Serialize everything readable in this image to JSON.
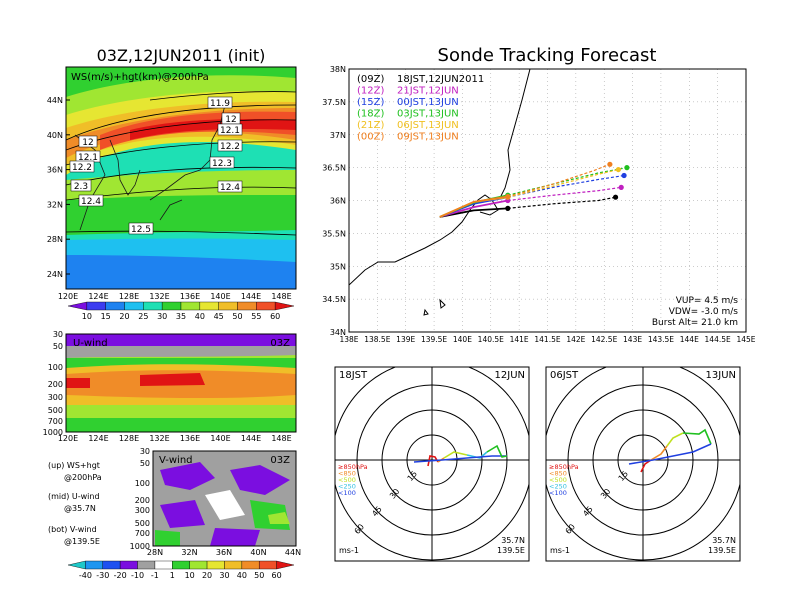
{
  "colors": {
    "map_bands": [
      "#7b0ee0",
      "#3c3cf0",
      "#1e82f0",
      "#1ec0f0",
      "#1ee0b4",
      "#30d030",
      "#a0e632",
      "#e6e632",
      "#f0be28",
      "#f08c28",
      "#f05028",
      "#e01414"
    ],
    "vwind_bands": [
      "#1ec8c8",
      "#1e96f0",
      "#1e50f0",
      "#7b0ee0",
      "#a0a0a0",
      "#ffffff",
      "#30d030",
      "#a0e632",
      "#e6e632",
      "#f0be28",
      "#f08c28",
      "#f05028",
      "#e01414"
    ],
    "tracks": [
      "#000000",
      "#c020c0",
      "#2040e0",
      "#20c020",
      "#f0c020",
      "#f08020"
    ]
  },
  "left_top": {
    "title": "03Z,12JUN2011 (init)",
    "label": "WS(m/s)+hgt(km)@200hPa",
    "lat_ticks": [
      "44N",
      "40N",
      "36N",
      "32N",
      "28N",
      "24N"
    ],
    "lon_ticks": [
      "120E",
      "124E",
      "128E",
      "132E",
      "136E",
      "140E",
      "144E",
      "148E"
    ],
    "contour_labels": [
      "11.9",
      "12",
      "12.1",
      "12.2",
      "12.3",
      "12.4",
      "12.5",
      "12",
      "12.1",
      "12.2",
      "2.3",
      "12.4"
    ],
    "colorbar": [
      "10",
      "15",
      "20",
      "25",
      "30",
      "35",
      "40",
      "45",
      "50",
      "55",
      "60"
    ]
  },
  "u_wind": {
    "label": "U-wind",
    "time": "03Z",
    "y_ticks": [
      "30",
      "50",
      "100",
      "200",
      "300",
      "500",
      "700",
      "1000"
    ],
    "x_ticks": [
      "120E",
      "124E",
      "128E",
      "132E",
      "136E",
      "140E",
      "144E",
      "148E"
    ]
  },
  "v_wind": {
    "label": "V-wind",
    "time": "03Z",
    "y_ticks": [
      "30",
      "50",
      "100",
      "200",
      "300",
      "500",
      "700",
      "1000"
    ],
    "x_ticks": [
      "28N",
      "32N",
      "36N",
      "40N",
      "44N"
    ],
    "colorbar": [
      "-40",
      "-30",
      "-20",
      "-10",
      "-1",
      "1",
      "10",
      "20",
      "30",
      "40",
      "50",
      "60"
    ]
  },
  "legend_notes": [
    {
      "a": "(up) WS+hgt",
      "b": "@200hPa"
    },
    {
      "a": "(mid) U-wind",
      "b": "@35.7N"
    },
    {
      "a": "(bot) V-wind",
      "b": "@139.5E"
    }
  ],
  "right": {
    "title": "Sonde Tracking Forecast",
    "lat_ticks": [
      "38N",
      "37.5N",
      "37N",
      "36.5N",
      "36N",
      "35.5N",
      "35N",
      "34.5N",
      "34N"
    ],
    "lon_ticks": [
      "138E",
      "138.5E",
      "139E",
      "139.5E",
      "140E",
      "140.5E",
      "141E",
      "141.5E",
      "142E",
      "142.5E",
      "143E",
      "143.5E",
      "144E",
      "144.5E",
      "145E"
    ],
    "launches": [
      {
        "code": "(09Z)",
        "time": "18JST,12JUN2011"
      },
      {
        "code": "(12Z)",
        "time": "21JST,12JUN"
      },
      {
        "code": "(15Z)",
        "time": "00JST,13JUN"
      },
      {
        "code": "(18Z)",
        "time": "03JST,13JUN"
      },
      {
        "code": "(21Z)",
        "time": "06JST,13JUN"
      },
      {
        "code": "(00Z)",
        "time": "09JST,13JUN"
      }
    ],
    "params": [
      "VUP=  4.5 m/s",
      "VDW= -3.0 m/s",
      "Burst Alt= 21.0 km"
    ]
  },
  "chart_data": [
    {
      "type": "line",
      "title": "Sonde Tracking Forecast",
      "xlim": [
        138,
        145
      ],
      "ylim": [
        34,
        38
      ],
      "series": [
        {
          "name": "(09Z) 18JST,12JUN2011",
          "x": [
            139.6,
            140.2,
            140.8,
            141.6,
            142.4,
            142.7
          ],
          "y": [
            35.75,
            35.85,
            35.88,
            35.95,
            36.0,
            36.05
          ]
        },
        {
          "name": "(12Z) 21JST,12JUN",
          "x": [
            139.6,
            140.2,
            140.8,
            141.6,
            142.4,
            142.8
          ],
          "y": [
            35.75,
            35.9,
            36.0,
            36.08,
            36.15,
            36.2
          ]
        },
        {
          "name": "(15Z) 00JST,13JUN",
          "x": [
            139.6,
            140.2,
            140.8,
            141.6,
            142.4,
            142.85
          ],
          "y": [
            35.75,
            35.95,
            36.05,
            36.2,
            36.32,
            36.38
          ]
        },
        {
          "name": "(18Z) 03JST,13JUN",
          "x": [
            139.6,
            140.2,
            140.8,
            141.6,
            142.4,
            142.9
          ],
          "y": [
            35.75,
            35.97,
            36.08,
            36.25,
            36.42,
            36.5
          ]
        },
        {
          "name": "(21Z) 06JST,13JUN",
          "x": [
            139.6,
            140.2,
            140.8,
            141.6,
            142.4,
            142.75
          ],
          "y": [
            35.75,
            35.98,
            36.05,
            36.22,
            36.4,
            36.47
          ]
        },
        {
          "name": "(00Z) 09JST,13JUN",
          "x": [
            139.6,
            140.2,
            140.8,
            141.6,
            142.3,
            142.6
          ],
          "y": [
            35.75,
            35.98,
            36.06,
            36.25,
            36.45,
            36.55
          ]
        }
      ]
    },
    {
      "type": "line",
      "title": "18JST",
      "date": "12JUN",
      "ring_labels": [
        "15",
        "30",
        "45",
        "60"
      ],
      "layers": [
        "≥850hPa",
        "<850",
        "<500",
        "<250",
        "<100"
      ],
      "location": [
        "35.7N",
        "139.5E"
      ],
      "unit": "ms-1"
    },
    {
      "type": "line",
      "title": "06JST",
      "date": "13JUN",
      "ring_labels": [
        "15",
        "30",
        "45",
        "60"
      ],
      "layers": [
        "≥850hPa",
        "<850",
        "<500",
        "<250",
        "<100"
      ],
      "location": [
        "35.7N",
        "139.5E"
      ],
      "unit": "ms-1"
    }
  ]
}
